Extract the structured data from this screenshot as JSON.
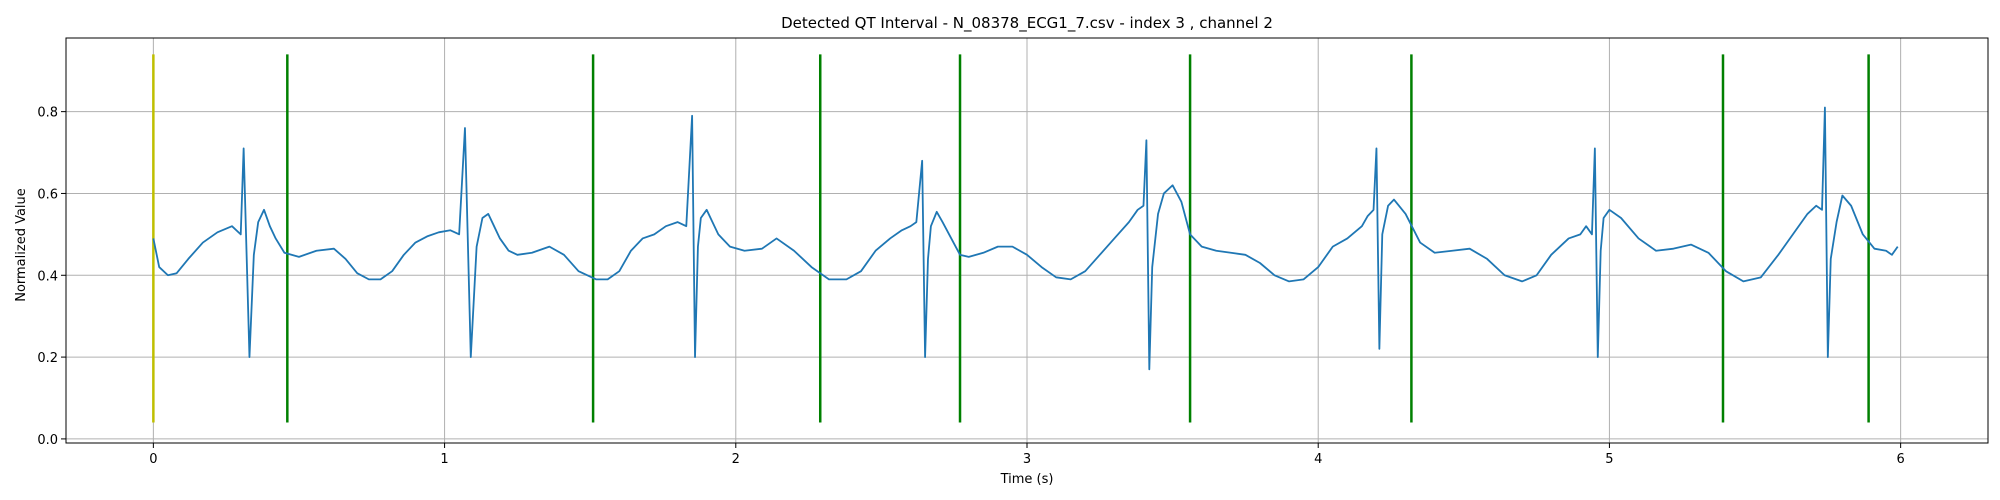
{
  "chart_data": {
    "type": "line",
    "title": "Detected QT Interval - N_08378_ECG1_7.csv - index 3 , channel 2",
    "xlabel": "Time (s)",
    "ylabel": "Normalized Value",
    "xlim": [
      -0.3,
      6.3
    ],
    "ylim": [
      -0.01,
      0.98
    ],
    "xticks": [
      0,
      1,
      2,
      3,
      4,
      5,
      6
    ],
    "yticks": [
      0.0,
      0.2,
      0.4,
      0.6,
      0.8
    ],
    "grid": true,
    "series": [
      {
        "color": "#1f77b4",
        "x": [
          0.0,
          0.02,
          0.05,
          0.08,
          0.12,
          0.17,
          0.22,
          0.27,
          0.3,
          0.31,
          0.33,
          0.345,
          0.36,
          0.38,
          0.4,
          0.42,
          0.45,
          0.5,
          0.56,
          0.62,
          0.66,
          0.7,
          0.74,
          0.78,
          0.82,
          0.86,
          0.9,
          0.94,
          0.98,
          1.02,
          1.05,
          1.07,
          1.09,
          1.11,
          1.13,
          1.15,
          1.17,
          1.19,
          1.22,
          1.25,
          1.3,
          1.36,
          1.41,
          1.46,
          1.52,
          1.56,
          1.6,
          1.64,
          1.68,
          1.72,
          1.76,
          1.8,
          1.83,
          1.85,
          1.86,
          1.87,
          1.88,
          1.9,
          1.92,
          1.94,
          1.98,
          2.03,
          2.09,
          2.14,
          2.2,
          2.26,
          2.32,
          2.38,
          2.43,
          2.48,
          2.53,
          2.57,
          2.6,
          2.62,
          2.64,
          2.65,
          2.66,
          2.67,
          2.69,
          2.71,
          2.74,
          2.77,
          2.8,
          2.85,
          2.9,
          2.95,
          3.0,
          3.05,
          3.1,
          3.15,
          3.2,
          3.25,
          3.3,
          3.35,
          3.38,
          3.4,
          3.41,
          3.42,
          3.43,
          3.45,
          3.47,
          3.5,
          3.53,
          3.56,
          3.6,
          3.65,
          3.7,
          3.75,
          3.8,
          3.85,
          3.9,
          3.95,
          4.0,
          4.05,
          4.1,
          4.15,
          4.17,
          4.19,
          4.2,
          4.21,
          4.22,
          4.24,
          4.26,
          4.3,
          4.35,
          4.4,
          4.46,
          4.52,
          4.58,
          4.64,
          4.7,
          4.75,
          4.8,
          4.86,
          4.9,
          4.92,
          4.94,
          4.95,
          4.96,
          4.97,
          4.98,
          5.0,
          5.04,
          5.1,
          5.16,
          5.22,
          5.28,
          5.34,
          5.4,
          5.46,
          5.52,
          5.58,
          5.64,
          5.68,
          5.71,
          5.73,
          5.74,
          5.75,
          5.76,
          5.78,
          5.8,
          5.83,
          5.87,
          5.91,
          5.95,
          5.97,
          5.99
        ],
        "y": [
          0.49,
          0.42,
          0.4,
          0.405,
          0.44,
          0.48,
          0.505,
          0.52,
          0.5,
          0.71,
          0.2,
          0.45,
          0.53,
          0.56,
          0.52,
          0.49,
          0.455,
          0.445,
          0.46,
          0.465,
          0.44,
          0.405,
          0.39,
          0.39,
          0.41,
          0.45,
          0.48,
          0.495,
          0.505,
          0.51,
          0.5,
          0.76,
          0.2,
          0.47,
          0.54,
          0.55,
          0.52,
          0.49,
          0.46,
          0.45,
          0.455,
          0.47,
          0.45,
          0.41,
          0.39,
          0.39,
          0.41,
          0.46,
          0.49,
          0.5,
          0.52,
          0.53,
          0.52,
          0.79,
          0.2,
          0.47,
          0.54,
          0.56,
          0.53,
          0.5,
          0.47,
          0.46,
          0.465,
          0.49,
          0.46,
          0.42,
          0.39,
          0.39,
          0.41,
          0.46,
          0.49,
          0.51,
          0.52,
          0.53,
          0.68,
          0.2,
          0.44,
          0.52,
          0.555,
          0.53,
          0.49,
          0.45,
          0.445,
          0.455,
          0.47,
          0.47,
          0.45,
          0.42,
          0.395,
          0.39,
          0.41,
          0.45,
          0.49,
          0.53,
          0.56,
          0.57,
          0.73,
          0.17,
          0.42,
          0.55,
          0.6,
          0.62,
          0.58,
          0.5,
          0.47,
          0.46,
          0.455,
          0.45,
          0.43,
          0.4,
          0.385,
          0.39,
          0.42,
          0.47,
          0.49,
          0.52,
          0.545,
          0.56,
          0.71,
          0.22,
          0.5,
          0.57,
          0.585,
          0.55,
          0.48,
          0.455,
          0.46,
          0.465,
          0.44,
          0.4,
          0.385,
          0.4,
          0.45,
          0.49,
          0.5,
          0.52,
          0.5,
          0.71,
          0.2,
          0.46,
          0.54,
          0.56,
          0.54,
          0.49,
          0.46,
          0.465,
          0.475,
          0.455,
          0.41,
          0.385,
          0.395,
          0.45,
          0.51,
          0.55,
          0.57,
          0.56,
          0.81,
          0.2,
          0.44,
          0.53,
          0.595,
          0.57,
          0.5,
          0.465,
          0.46,
          0.45,
          0.47
        ]
      }
    ],
    "vertical_markers": [
      {
        "x": 0.0,
        "y_range": [
          0.04,
          0.94
        ],
        "color": "#bfbf00"
      },
      {
        "x": 0.46,
        "y_range": [
          0.04,
          0.94
        ],
        "color": "#008000"
      },
      {
        "x": 1.51,
        "y_range": [
          0.04,
          0.94
        ],
        "color": "#008000"
      },
      {
        "x": 2.29,
        "y_range": [
          0.04,
          0.94
        ],
        "color": "#008000"
      },
      {
        "x": 2.77,
        "y_range": [
          0.04,
          0.94
        ],
        "color": "#008000"
      },
      {
        "x": 3.56,
        "y_range": [
          0.04,
          0.94
        ],
        "color": "#008000"
      },
      {
        "x": 4.32,
        "y_range": [
          0.04,
          0.94
        ],
        "color": "#008000"
      },
      {
        "x": 5.39,
        "y_range": [
          0.04,
          0.94
        ],
        "color": "#008000"
      },
      {
        "x": 5.89,
        "y_range": [
          0.04,
          0.94
        ],
        "color": "#008000"
      }
    ]
  }
}
